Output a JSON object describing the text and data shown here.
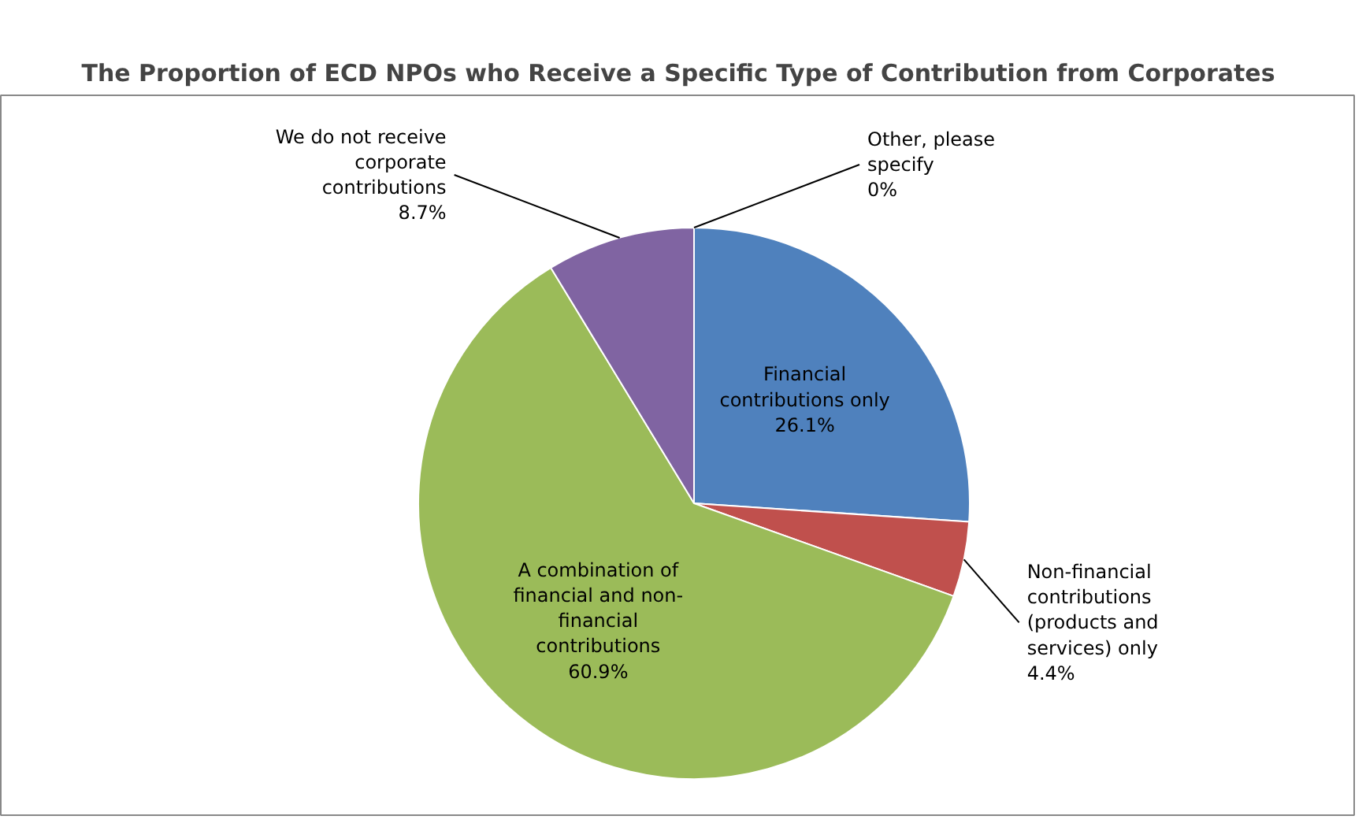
{
  "chart_data": {
    "type": "pie",
    "title": "The Proportion of ECD NPOs who Receive a Specific Type of Contribution from Corporates",
    "categories": [
      "Financial\ncontributions only",
      "Non-financial\ncontributions\n(products and\nservices) only",
      "A combination of\nfinancial and non-\nfinancial\ncontributions",
      "We do not receive\ncorporate\ncontributions",
      "Other, please\nspecify"
    ],
    "values": [
      26.1,
      4.4,
      60.9,
      8.7,
      0
    ],
    "value_labels": [
      "26.1%",
      "4.4%",
      "60.9%",
      "8.7%",
      "0%"
    ],
    "colors": [
      "#4f81bd",
      "#c0504d",
      "#9bbb59",
      "#8064a2",
      "#4bacc6"
    ]
  }
}
